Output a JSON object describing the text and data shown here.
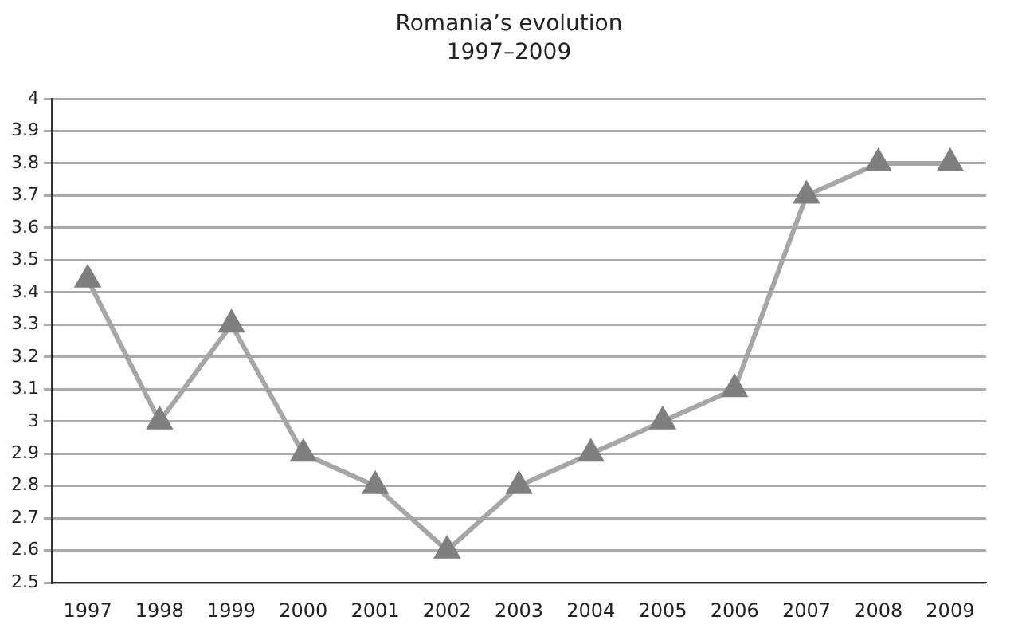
{
  "chart_data": {
    "type": "line",
    "title": "Romania’s evolution",
    "subtitle": "1997–2009",
    "categories": [
      "1997",
      "1998",
      "1999",
      "2000",
      "2001",
      "2002",
      "2003",
      "2004",
      "2005",
      "2006",
      "2007",
      "2008",
      "2009"
    ],
    "series": [
      {
        "color": "#a6a6a6",
        "values": [
          3.44,
          3.0,
          3.3,
          2.9,
          2.8,
          2.6,
          2.8,
          2.9,
          3.0,
          3.1,
          3.7,
          3.8,
          3.8
        ]
      }
    ],
    "ylim": [
      2.5,
      4
    ],
    "yticks": [
      2.5,
      2.6,
      2.7,
      2.8,
      2.9,
      3,
      3.1,
      3.2,
      3.3,
      3.4,
      3.5,
      3.6,
      3.7,
      3.8,
      3.9,
      4
    ],
    "grid": "y",
    "legend": false,
    "marker": "triangle",
    "line_style": "solid"
  }
}
